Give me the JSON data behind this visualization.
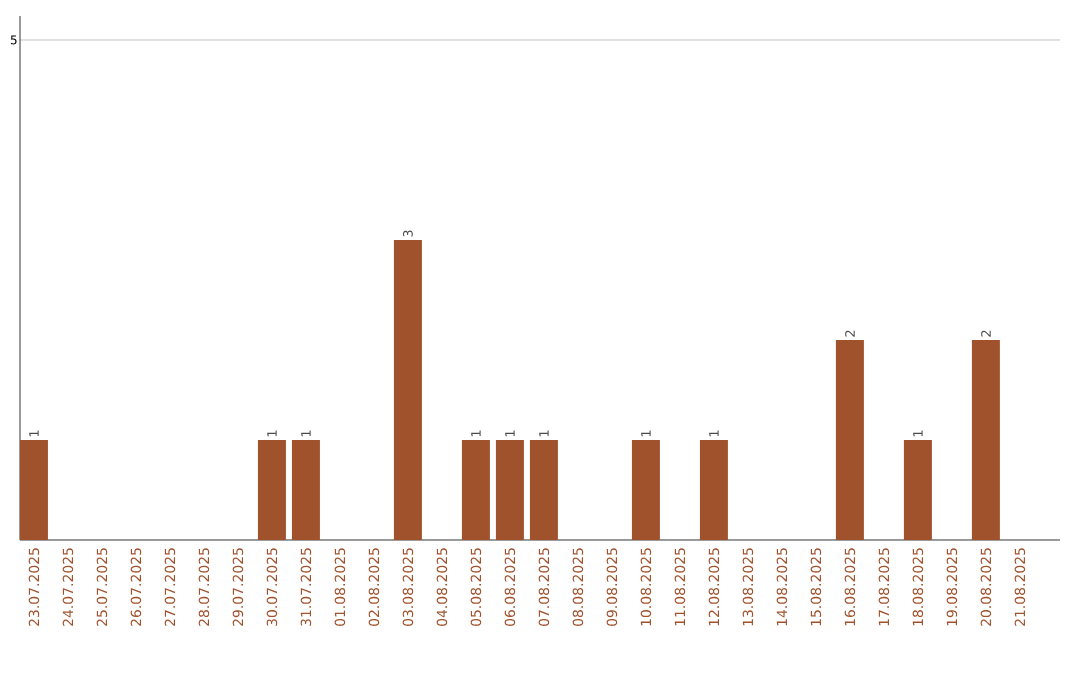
{
  "chart_data": {
    "type": "bar",
    "categories": [
      "23.07.2025",
      "24.07.2025",
      "25.07.2025",
      "26.07.2025",
      "27.07.2025",
      "28.07.2025",
      "29.07.2025",
      "30.07.2025",
      "31.07.2025",
      "01.08.2025",
      "02.08.2025",
      "03.08.2025",
      "04.08.2025",
      "05.08.2025",
      "06.08.2025",
      "07.08.2025",
      "08.08.2025",
      "09.08.2025",
      "10.08.2025",
      "11.08.2025",
      "12.08.2025",
      "13.08.2025",
      "14.08.2025",
      "15.08.2025",
      "16.08.2025",
      "17.08.2025",
      "18.08.2025",
      "19.08.2025",
      "20.08.2025",
      "21.08.2025"
    ],
    "values": [
      1,
      null,
      null,
      null,
      null,
      null,
      null,
      1,
      1,
      null,
      null,
      3,
      null,
      1,
      1,
      1,
      null,
      null,
      1,
      null,
      1,
      null,
      null,
      null,
      2,
      null,
      1,
      null,
      2,
      null
    ],
    "color": "#a0522d",
    "ylim": [
      0,
      5.24
    ],
    "yticks": [
      5
    ],
    "grid": "y",
    "data_labels": true
  }
}
